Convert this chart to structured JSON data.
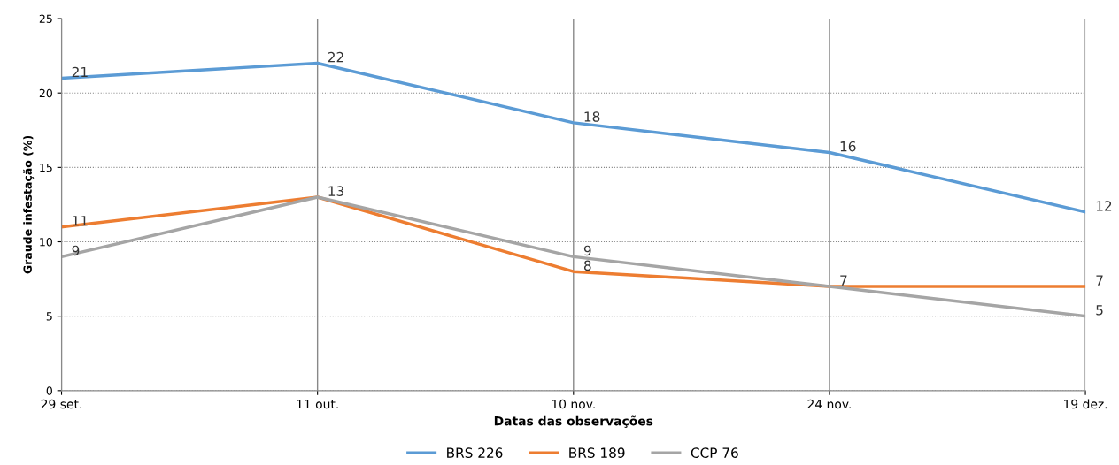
{
  "chart_data": {
    "type": "line",
    "xlabel": "Datas das observações",
    "ylabel": "Graude infestação (%)",
    "categories": [
      "29 set.",
      "11 out.",
      "10 nov.",
      "24 nov.",
      "19 dez."
    ],
    "series": [
      {
        "name": "BRS 226",
        "color": "#5b9bd5",
        "values": [
          21,
          22,
          18,
          16,
          12
        ],
        "value_labels": [
          "21",
          "22",
          "18",
          "16",
          "12"
        ]
      },
      {
        "name": "BRS 189",
        "color": "#ed7d31",
        "values": [
          11,
          13,
          8,
          7,
          7
        ],
        "value_labels": [
          "11",
          "13",
          "8",
          "7",
          "7"
        ]
      },
      {
        "name": "CCP 76",
        "color": "#a5a5a5",
        "values": [
          9,
          13,
          9,
          7,
          5
        ],
        "value_labels": [
          "9",
          null,
          "9",
          null,
          "5"
        ]
      }
    ],
    "ylim": [
      0,
      25
    ],
    "yticks": [
      0,
      5,
      10,
      15,
      20,
      25
    ],
    "grid": true,
    "legend": "bottom",
    "marker": "none"
  }
}
